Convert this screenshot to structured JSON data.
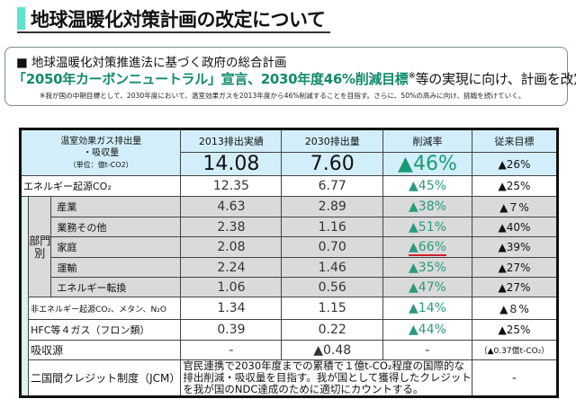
{
  "title": "地球温暖化対策計画の改定について",
  "box": {
    "line1": "■ 地球温暖化対策推進法に基づく政府の総合計画",
    "line2_highlight": "「2050年カーボンニュートラル」宣言、2030年度46%削減目標",
    "line2_mark": "※",
    "line2_rest": "等の実現に向け、計画を改定。",
    "note": "※我が国の中期目標として、2030年度において、温室効果ガスを2013年度から46%削減することを目指す。さらに、50%の高みに向け、挑戦を続けていく。"
  },
  "table": {
    "head": {
      "label1": "温室効果ガス排出量",
      "label2": "・吸収量",
      "unit": "（単位：億t-CO2）",
      "c1": "2013排出実績",
      "c2": "2030排出量",
      "c3": "削減率",
      "c4": "従来目標"
    },
    "total": {
      "v2013": "14.08",
      "v2030": "7.60",
      "rate": "▲46%",
      "prev": "▲26%"
    },
    "energy": {
      "label": "エネルギー起源CO₂",
      "v2013": "12.35",
      "v2030": "6.77",
      "rate": "▲45%",
      "prev": "▲25%"
    },
    "sector_label": "部門別",
    "sectors": [
      {
        "label": "産業",
        "v2013": "4.63",
        "v2030": "2.89",
        "rate": "▲38%",
        "prev": "▲７%"
      },
      {
        "label": "業務その他",
        "v2013": "2.38",
        "v2030": "1.16",
        "rate": "▲51%",
        "prev": "▲40%"
      },
      {
        "label": "家庭",
        "v2013": "2.08",
        "v2030": "0.70",
        "rate": "▲66%",
        "prev": "▲39%"
      },
      {
        "label": "運輸",
        "v2013": "2.24",
        "v2030": "1.46",
        "rate": "▲35%",
        "prev": "▲27%"
      },
      {
        "label": "エネルギー転換",
        "v2013": "1.06",
        "v2030": "0.56",
        "rate": "▲47%",
        "prev": "▲27%"
      }
    ],
    "nonenergy": {
      "label": "非エネルギー起源CO₂、メタン、N₂O",
      "v2013": "1.34",
      "v2030": "1.15",
      "rate": "▲14%",
      "prev": "▲８%"
    },
    "hfc": {
      "label": "HFC等４ガス（フロン類）",
      "v2013": "0.39",
      "v2030": "0.22",
      "rate": "▲44%",
      "prev": "▲25%"
    },
    "sink": {
      "label": "吸収源",
      "v2013": "-",
      "v2030": "▲0.48",
      "rate": "-",
      "prev": "（▲0.37億t-CO₂）"
    },
    "jcm": {
      "label": "二国間クレジット制度（JCM）",
      "text": "官民連携で2030年度までの累積で１億t-CO₂程度の国際的な排出削減・吸収量を目指す。我が国として獲得したクレジットを我が国のNDC達成のために適切にカウントする。",
      "prev": "-"
    }
  },
  "colors": {
    "accent": "#128a6c",
    "header_bg": "#d2eefa",
    "sector_bg": "#dadada",
    "title_bar": "#5fe0d0",
    "highlight_underline": "#d02030"
  }
}
